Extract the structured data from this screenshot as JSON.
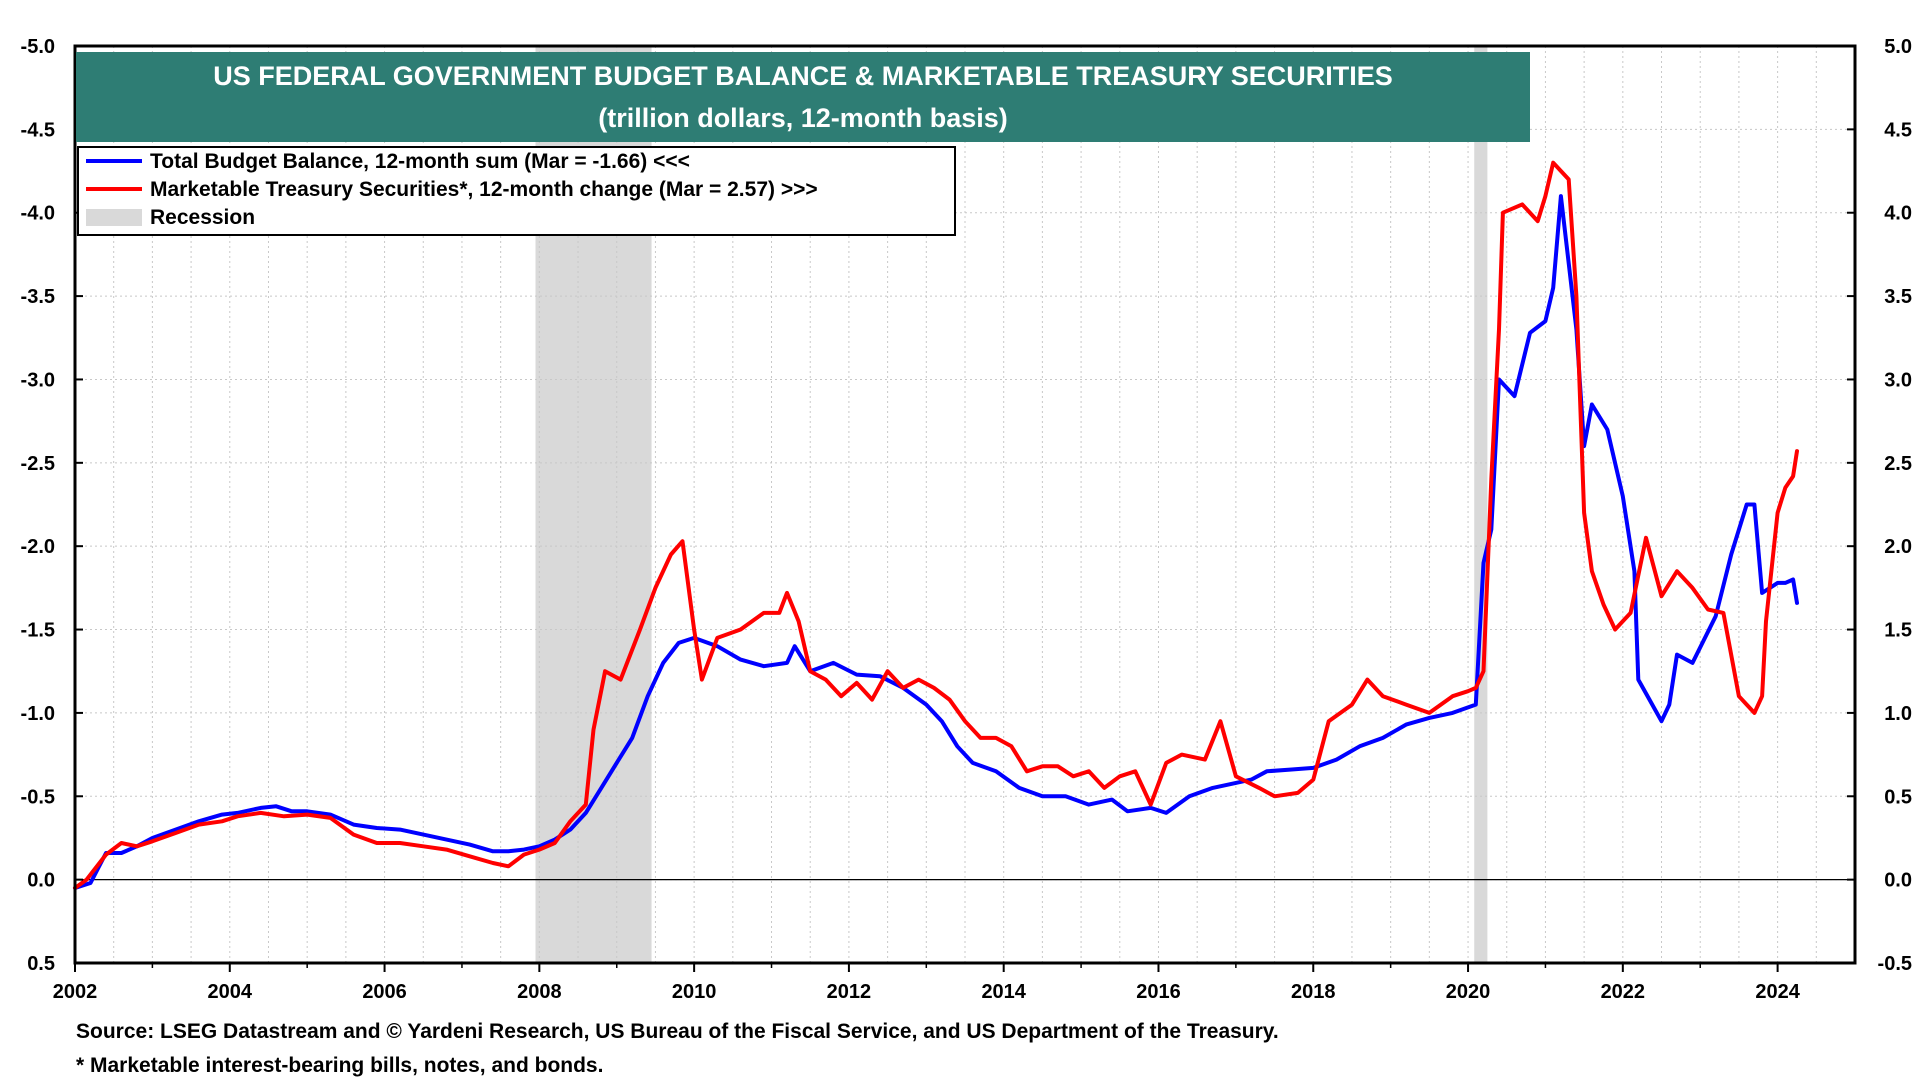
{
  "chart_data": {
    "type": "line",
    "title": "US FEDERAL GOVERNMENT BUDGET BALANCE & MARKETABLE TREASURY SECURITIES",
    "subtitle": "(trillion dollars, 12-month basis)",
    "x_range": [
      2002,
      2025
    ],
    "x_ticks": [
      {
        "value": 2002,
        "label": "2002"
      },
      {
        "value": 2004,
        "label": "2004"
      },
      {
        "value": 2006,
        "label": "2006"
      },
      {
        "value": 2008,
        "label": "2008"
      },
      {
        "value": 2010,
        "label": "2010"
      },
      {
        "value": 2012,
        "label": "2012"
      },
      {
        "value": 2014,
        "label": "2014"
      },
      {
        "value": 2016,
        "label": "2016"
      },
      {
        "value": 2018,
        "label": "2018"
      },
      {
        "value": 2020,
        "label": "2020"
      },
      {
        "value": 2022,
        "label": "2022"
      },
      {
        "value": 2024,
        "label": "2024"
      }
    ],
    "left_axis": {
      "inverted": true,
      "range": [
        -5.0,
        0.5
      ],
      "ticks": [
        {
          "value": -5.0,
          "label": "-5.0"
        },
        {
          "value": -4.5,
          "label": "-4.5"
        },
        {
          "value": -4.0,
          "label": "-4.0"
        },
        {
          "value": -3.5,
          "label": "-3.5"
        },
        {
          "value": -3.0,
          "label": "-3.0"
        },
        {
          "value": -2.5,
          "label": "-2.5"
        },
        {
          "value": -2.0,
          "label": "-2.0"
        },
        {
          "value": -1.5,
          "label": "-1.5"
        },
        {
          "value": -1.0,
          "label": "-1.0"
        },
        {
          "value": -0.5,
          "label": "-0.5"
        },
        {
          "value": 0.0,
          "label": "0.0"
        },
        {
          "value": 0.5,
          "label": "0.5"
        }
      ]
    },
    "right_axis": {
      "range": [
        -0.5,
        5.0
      ],
      "ticks": [
        {
          "value": 5.0,
          "label": "5.0"
        },
        {
          "value": 4.5,
          "label": "4.5"
        },
        {
          "value": 4.0,
          "label": "4.0"
        },
        {
          "value": 3.5,
          "label": "3.5"
        },
        {
          "value": 3.0,
          "label": "3.0"
        },
        {
          "value": 2.5,
          "label": "2.5"
        },
        {
          "value": 2.0,
          "label": "2.0"
        },
        {
          "value": 1.5,
          "label": "1.5"
        },
        {
          "value": 1.0,
          "label": "1.0"
        },
        {
          "value": 0.5,
          "label": "0.5"
        },
        {
          "value": 0.0,
          "label": "0.0"
        },
        {
          "value": -0.5,
          "label": "-0.5"
        }
      ]
    },
    "grid": true,
    "zero_line": 0,
    "recessions": [
      [
        2007.95,
        2009.45
      ],
      [
        2020.08,
        2020.25
      ]
    ],
    "legend": {
      "placement": "top-left",
      "entries": [
        {
          "label": "Total Budget Balance, 12-month sum (Mar = -1.66) <<<",
          "color": "#0000ff",
          "kind": "line"
        },
        {
          "label": "Marketable Treasury Securities*, 12-month change (Mar = 2.57) >>>",
          "color": "#ff0000",
          "kind": "line"
        },
        {
          "label": "Recession",
          "color": "#d9d9d9",
          "kind": "box"
        }
      ]
    },
    "series": [
      {
        "name": "Total Budget Balance, 12-month sum",
        "axis": "left",
        "color": "#0000ff",
        "points": [
          [
            2002.0,
            0.05
          ],
          [
            2002.2,
            0.02
          ],
          [
            2002.4,
            -0.16
          ],
          [
            2002.6,
            -0.16
          ],
          [
            2002.8,
            -0.2
          ],
          [
            2003.0,
            -0.25
          ],
          [
            2003.3,
            -0.3
          ],
          [
            2003.6,
            -0.35
          ],
          [
            2003.9,
            -0.39
          ],
          [
            2004.1,
            -0.4
          ],
          [
            2004.4,
            -0.43
          ],
          [
            2004.6,
            -0.44
          ],
          [
            2004.8,
            -0.41
          ],
          [
            2005.0,
            -0.41
          ],
          [
            2005.3,
            -0.39
          ],
          [
            2005.6,
            -0.33
          ],
          [
            2005.9,
            -0.31
          ],
          [
            2006.2,
            -0.3
          ],
          [
            2006.5,
            -0.27
          ],
          [
            2006.8,
            -0.24
          ],
          [
            2007.1,
            -0.21
          ],
          [
            2007.4,
            -0.17
          ],
          [
            2007.6,
            -0.17
          ],
          [
            2007.8,
            -0.18
          ],
          [
            2008.0,
            -0.2
          ],
          [
            2008.2,
            -0.24
          ],
          [
            2008.4,
            -0.3
          ],
          [
            2008.6,
            -0.4
          ],
          [
            2008.8,
            -0.55
          ],
          [
            2009.0,
            -0.7
          ],
          [
            2009.2,
            -0.85
          ],
          [
            2009.4,
            -1.1
          ],
          [
            2009.6,
            -1.3
          ],
          [
            2009.8,
            -1.42
          ],
          [
            2010.0,
            -1.45
          ],
          [
            2010.3,
            -1.4
          ],
          [
            2010.6,
            -1.32
          ],
          [
            2010.9,
            -1.28
          ],
          [
            2011.2,
            -1.3
          ],
          [
            2011.3,
            -1.4
          ],
          [
            2011.5,
            -1.25
          ],
          [
            2011.8,
            -1.3
          ],
          [
            2012.1,
            -1.23
          ],
          [
            2012.4,
            -1.22
          ],
          [
            2012.7,
            -1.15
          ],
          [
            2013.0,
            -1.05
          ],
          [
            2013.2,
            -0.95
          ],
          [
            2013.4,
            -0.8
          ],
          [
            2013.6,
            -0.7
          ],
          [
            2013.9,
            -0.65
          ],
          [
            2014.2,
            -0.55
          ],
          [
            2014.5,
            -0.5
          ],
          [
            2014.8,
            -0.5
          ],
          [
            2015.1,
            -0.45
          ],
          [
            2015.4,
            -0.48
          ],
          [
            2015.6,
            -0.41
          ],
          [
            2015.9,
            -0.43
          ],
          [
            2016.1,
            -0.4
          ],
          [
            2016.4,
            -0.5
          ],
          [
            2016.7,
            -0.55
          ],
          [
            2017.0,
            -0.58
          ],
          [
            2017.2,
            -0.6
          ],
          [
            2017.4,
            -0.65
          ],
          [
            2017.7,
            -0.66
          ],
          [
            2018.0,
            -0.67
          ],
          [
            2018.3,
            -0.72
          ],
          [
            2018.6,
            -0.8
          ],
          [
            2018.9,
            -0.85
          ],
          [
            2019.2,
            -0.93
          ],
          [
            2019.5,
            -0.97
          ],
          [
            2019.8,
            -1.0
          ],
          [
            2020.1,
            -1.05
          ],
          [
            2020.2,
            -1.9
          ],
          [
            2020.3,
            -2.1
          ],
          [
            2020.4,
            -3.0
          ],
          [
            2020.6,
            -2.9
          ],
          [
            2020.8,
            -3.28
          ],
          [
            2021.0,
            -3.35
          ],
          [
            2021.1,
            -3.55
          ],
          [
            2021.2,
            -4.1
          ],
          [
            2021.4,
            -3.3
          ],
          [
            2021.5,
            -2.6
          ],
          [
            2021.6,
            -2.85
          ],
          [
            2021.8,
            -2.7
          ],
          [
            2022.0,
            -2.3
          ],
          [
            2022.15,
            -1.85
          ],
          [
            2022.2,
            -1.2
          ],
          [
            2022.5,
            -0.95
          ],
          [
            2022.6,
            -1.05
          ],
          [
            2022.7,
            -1.35
          ],
          [
            2022.9,
            -1.3
          ],
          [
            2023.2,
            -1.58
          ],
          [
            2023.4,
            -1.95
          ],
          [
            2023.6,
            -2.25
          ],
          [
            2023.7,
            -2.25
          ],
          [
            2023.8,
            -1.72
          ],
          [
            2024.0,
            -1.78
          ],
          [
            2024.1,
            -1.78
          ],
          [
            2024.2,
            -1.8
          ],
          [
            2024.25,
            -1.66
          ]
        ]
      },
      {
        "name": "Marketable Treasury Securities*, 12-month change",
        "axis": "right",
        "color": "#ff0000",
        "points": [
          [
            2002.0,
            -0.05
          ],
          [
            2002.15,
            0.0
          ],
          [
            2002.4,
            0.15
          ],
          [
            2002.6,
            0.22
          ],
          [
            2002.8,
            0.2
          ],
          [
            2003.0,
            0.23
          ],
          [
            2003.3,
            0.28
          ],
          [
            2003.6,
            0.33
          ],
          [
            2003.9,
            0.35
          ],
          [
            2004.1,
            0.38
          ],
          [
            2004.4,
            0.4
          ],
          [
            2004.7,
            0.38
          ],
          [
            2005.0,
            0.39
          ],
          [
            2005.3,
            0.37
          ],
          [
            2005.6,
            0.27
          ],
          [
            2005.9,
            0.22
          ],
          [
            2006.2,
            0.22
          ],
          [
            2006.5,
            0.2
          ],
          [
            2006.8,
            0.18
          ],
          [
            2007.1,
            0.14
          ],
          [
            2007.4,
            0.1
          ],
          [
            2007.6,
            0.08
          ],
          [
            2007.8,
            0.15
          ],
          [
            2008.0,
            0.18
          ],
          [
            2008.2,
            0.22
          ],
          [
            2008.4,
            0.35
          ],
          [
            2008.6,
            0.45
          ],
          [
            2008.7,
            0.9
          ],
          [
            2008.85,
            1.25
          ],
          [
            2009.05,
            1.2
          ],
          [
            2009.3,
            1.5
          ],
          [
            2009.5,
            1.75
          ],
          [
            2009.7,
            1.95
          ],
          [
            2009.85,
            2.03
          ],
          [
            2010.0,
            1.5
          ],
          [
            2010.1,
            1.2
          ],
          [
            2010.3,
            1.45
          ],
          [
            2010.6,
            1.5
          ],
          [
            2010.9,
            1.6
          ],
          [
            2011.1,
            1.6
          ],
          [
            2011.2,
            1.72
          ],
          [
            2011.35,
            1.55
          ],
          [
            2011.5,
            1.25
          ],
          [
            2011.7,
            1.2
          ],
          [
            2011.9,
            1.1
          ],
          [
            2012.1,
            1.18
          ],
          [
            2012.3,
            1.08
          ],
          [
            2012.5,
            1.25
          ],
          [
            2012.7,
            1.15
          ],
          [
            2012.9,
            1.2
          ],
          [
            2013.1,
            1.15
          ],
          [
            2013.3,
            1.08
          ],
          [
            2013.5,
            0.95
          ],
          [
            2013.7,
            0.85
          ],
          [
            2013.9,
            0.85
          ],
          [
            2014.1,
            0.8
          ],
          [
            2014.3,
            0.65
          ],
          [
            2014.5,
            0.68
          ],
          [
            2014.7,
            0.68
          ],
          [
            2014.9,
            0.62
          ],
          [
            2015.1,
            0.65
          ],
          [
            2015.3,
            0.55
          ],
          [
            2015.5,
            0.62
          ],
          [
            2015.7,
            0.65
          ],
          [
            2015.9,
            0.45
          ],
          [
            2016.1,
            0.7
          ],
          [
            2016.3,
            0.75
          ],
          [
            2016.6,
            0.72
          ],
          [
            2016.8,
            0.95
          ],
          [
            2017.0,
            0.62
          ],
          [
            2017.3,
            0.55
          ],
          [
            2017.5,
            0.5
          ],
          [
            2017.8,
            0.52
          ],
          [
            2018.0,
            0.6
          ],
          [
            2018.2,
            0.95
          ],
          [
            2018.5,
            1.05
          ],
          [
            2018.7,
            1.2
          ],
          [
            2018.9,
            1.1
          ],
          [
            2019.2,
            1.05
          ],
          [
            2019.5,
            1.0
          ],
          [
            2019.8,
            1.1
          ],
          [
            2020.0,
            1.13
          ],
          [
            2020.1,
            1.15
          ],
          [
            2020.2,
            1.25
          ],
          [
            2020.3,
            2.4
          ],
          [
            2020.4,
            3.3
          ],
          [
            2020.45,
            4.0
          ],
          [
            2020.7,
            4.05
          ],
          [
            2020.9,
            3.95
          ],
          [
            2021.0,
            4.1
          ],
          [
            2021.1,
            4.3
          ],
          [
            2021.2,
            4.25
          ],
          [
            2021.3,
            4.2
          ],
          [
            2021.4,
            3.5
          ],
          [
            2021.5,
            2.2
          ],
          [
            2021.6,
            1.85
          ],
          [
            2021.75,
            1.65
          ],
          [
            2021.9,
            1.5
          ],
          [
            2022.1,
            1.6
          ],
          [
            2022.3,
            2.05
          ],
          [
            2022.5,
            1.7
          ],
          [
            2022.7,
            1.85
          ],
          [
            2022.9,
            1.75
          ],
          [
            2023.1,
            1.62
          ],
          [
            2023.3,
            1.6
          ],
          [
            2023.5,
            1.1
          ],
          [
            2023.6,
            1.05
          ],
          [
            2023.7,
            1.0
          ],
          [
            2023.8,
            1.1
          ],
          [
            2023.85,
            1.55
          ],
          [
            2024.0,
            2.2
          ],
          [
            2024.1,
            2.35
          ],
          [
            2024.2,
            2.42
          ],
          [
            2024.25,
            2.57
          ]
        ]
      }
    ],
    "footnotes": [
      "Source: LSEG Datastream and © Yardeni Research, US Bureau of the Fiscal Service, and US Department of the Treasury.",
      "* Marketable interest-bearing bills, notes, and bonds."
    ],
    "colors": {
      "title_bg": "#2e7d74",
      "blue": "#0000ff",
      "red": "#ff0000",
      "recession": "#d9d9d9",
      "grid": "#c8c8c8"
    }
  }
}
